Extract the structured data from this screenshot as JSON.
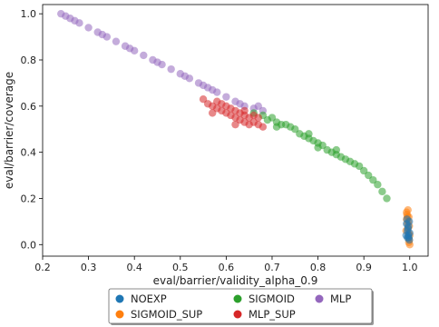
{
  "chart_data": {
    "type": "scatter",
    "xlabel": "eval/barrier/validity_alpha_0.9",
    "ylabel": "eval/barrier/coverage",
    "xlim": [
      0.2,
      1.04
    ],
    "ylim": [
      -0.05,
      1.04
    ],
    "xticks": [
      "0.2",
      "0.3",
      "0.4",
      "0.5",
      "0.6",
      "0.7",
      "0.8",
      "0.9",
      "1.0"
    ],
    "yticks": [
      "0.0",
      "0.2",
      "0.4",
      "0.6",
      "0.8",
      "1.0"
    ],
    "grid": false,
    "legend_position": "below plot, 3 columns",
    "series": [
      {
        "name": "NOEXP",
        "color": "#1f77b4",
        "points": [
          [
            0.995,
            0.06
          ],
          [
            0.997,
            0.04
          ],
          [
            0.993,
            0.09
          ],
          [
            0.999,
            0.02
          ],
          [
            0.996,
            0.07
          ],
          [
            0.998,
            0.03
          ],
          [
            0.994,
            0.11
          ],
          [
            1.0,
            0.05
          ],
          [
            0.997,
            0.08
          ],
          [
            0.992,
            0.04
          ],
          [
            0.999,
            0.1
          ],
          [
            0.995,
            0.03
          ]
        ]
      },
      {
        "name": "SIGMOID_SUP",
        "color": "#ff7f0e",
        "points": [
          [
            0.996,
            0.15
          ],
          [
            0.994,
            0.13
          ],
          [
            0.998,
            0.12
          ],
          [
            0.993,
            0.11
          ],
          [
            0.997,
            0.1
          ],
          [
            0.995,
            0.09
          ],
          [
            0.999,
            0.08
          ],
          [
            0.996,
            0.07
          ],
          [
            0.992,
            0.06
          ],
          [
            0.998,
            0.05
          ],
          [
            1.0,
            0.04
          ],
          [
            0.997,
            0.03
          ],
          [
            0.999,
            0.02
          ],
          [
            0.995,
            0.12
          ],
          [
            0.993,
            0.14
          ],
          [
            1.0,
            0.0
          ],
          [
            0.998,
            0.01
          ]
        ]
      },
      {
        "name": "SIGMOID",
        "color": "#2ca02c",
        "points": [
          [
            0.66,
            0.57
          ],
          [
            0.68,
            0.56
          ],
          [
            0.7,
            0.55
          ],
          [
            0.71,
            0.53
          ],
          [
            0.72,
            0.52
          ],
          [
            0.73,
            0.52
          ],
          [
            0.74,
            0.51
          ],
          [
            0.75,
            0.5
          ],
          [
            0.76,
            0.48
          ],
          [
            0.77,
            0.47
          ],
          [
            0.78,
            0.46
          ],
          [
            0.79,
            0.45
          ],
          [
            0.8,
            0.44
          ],
          [
            0.81,
            0.43
          ],
          [
            0.82,
            0.41
          ],
          [
            0.83,
            0.4
          ],
          [
            0.84,
            0.39
          ],
          [
            0.85,
            0.38
          ],
          [
            0.86,
            0.37
          ],
          [
            0.87,
            0.36
          ],
          [
            0.88,
            0.35
          ],
          [
            0.89,
            0.34
          ],
          [
            0.9,
            0.32
          ],
          [
            0.91,
            0.3
          ],
          [
            0.92,
            0.28
          ],
          [
            0.93,
            0.26
          ],
          [
            0.94,
            0.23
          ],
          [
            0.95,
            0.2
          ],
          [
            0.69,
            0.54
          ],
          [
            0.78,
            0.48
          ],
          [
            0.84,
            0.41
          ],
          [
            0.71,
            0.51
          ],
          [
            0.8,
            0.42
          ]
        ]
      },
      {
        "name": "MLP_SUP",
        "color": "#d62728",
        "points": [
          [
            0.55,
            0.63
          ],
          [
            0.56,
            0.61
          ],
          [
            0.57,
            0.6
          ],
          [
            0.58,
            0.62
          ],
          [
            0.59,
            0.58
          ],
          [
            0.6,
            0.57
          ],
          [
            0.61,
            0.56
          ],
          [
            0.62,
            0.55
          ],
          [
            0.63,
            0.54
          ],
          [
            0.64,
            0.56
          ],
          [
            0.65,
            0.55
          ],
          [
            0.66,
            0.53
          ],
          [
            0.67,
            0.52
          ],
          [
            0.68,
            0.51
          ],
          [
            0.6,
            0.6
          ],
          [
            0.62,
            0.58
          ],
          [
            0.64,
            0.53
          ],
          [
            0.66,
            0.56
          ],
          [
            0.58,
            0.59
          ],
          [
            0.63,
            0.57
          ],
          [
            0.61,
            0.59
          ],
          [
            0.65,
            0.52
          ],
          [
            0.67,
            0.55
          ],
          [
            0.59,
            0.61
          ],
          [
            0.62,
            0.52
          ],
          [
            0.64,
            0.58
          ],
          [
            0.57,
            0.57
          ]
        ]
      },
      {
        "name": "MLP",
        "color": "#9467bd",
        "points": [
          [
            0.24,
            1.0
          ],
          [
            0.25,
            0.99
          ],
          [
            0.26,
            0.98
          ],
          [
            0.28,
            0.96
          ],
          [
            0.3,
            0.94
          ],
          [
            0.32,
            0.92
          ],
          [
            0.34,
            0.9
          ],
          [
            0.36,
            0.88
          ],
          [
            0.38,
            0.86
          ],
          [
            0.4,
            0.84
          ],
          [
            0.42,
            0.82
          ],
          [
            0.44,
            0.8
          ],
          [
            0.46,
            0.78
          ],
          [
            0.48,
            0.76
          ],
          [
            0.5,
            0.74
          ],
          [
            0.52,
            0.72
          ],
          [
            0.54,
            0.7
          ],
          [
            0.56,
            0.68
          ],
          [
            0.58,
            0.66
          ],
          [
            0.6,
            0.64
          ],
          [
            0.62,
            0.62
          ],
          [
            0.64,
            0.6
          ],
          [
            0.66,
            0.59
          ],
          [
            0.68,
            0.58
          ],
          [
            0.27,
            0.97
          ],
          [
            0.33,
            0.91
          ],
          [
            0.39,
            0.85
          ],
          [
            0.45,
            0.79
          ],
          [
            0.51,
            0.73
          ],
          [
            0.57,
            0.67
          ],
          [
            0.63,
            0.61
          ],
          [
            0.67,
            0.6
          ],
          [
            0.55,
            0.69
          ]
        ]
      }
    ]
  }
}
